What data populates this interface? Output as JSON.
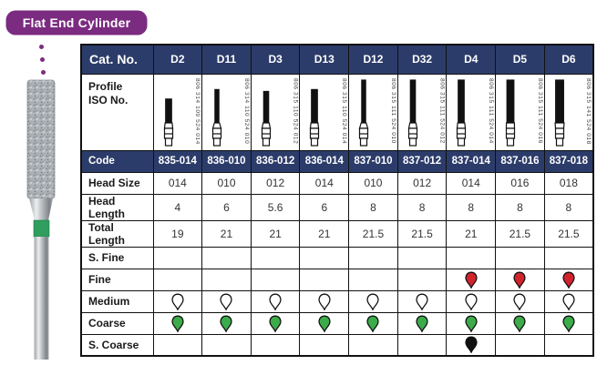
{
  "page": {
    "title": "Flat End Cylinder",
    "accent_purple": "#7b2b80",
    "navy": "#2c3c6a"
  },
  "product_image": {
    "name": "flat-end-cylinder-diamond-bur-photo",
    "band_color": "#2f9e5f"
  },
  "table": {
    "col_headers": [
      "Cat. No.",
      "D2",
      "D11",
      "D3",
      "D13",
      "D12",
      "D32",
      "D4",
      "D5",
      "D6"
    ],
    "profile_label": "Profile\nISO No.",
    "iso_numbers": [
      "806 314 109 524 014",
      "806 314 110 524 010",
      "806 315 110 524 012",
      "806 315 110 524 014",
      "806 315 111 524 010",
      "806 315 111 524 012",
      "806 315 111 524 014",
      "806 315 111 524 016",
      "806 315 141 524 018"
    ],
    "rows": [
      {
        "label": "Code",
        "style": "navy",
        "type": "text",
        "values": [
          "835-014",
          "836-010",
          "836-012",
          "836-014",
          "837-010",
          "837-012",
          "837-014",
          "837-016",
          "837-018"
        ]
      },
      {
        "label": "Head Size",
        "type": "text",
        "values": [
          "014",
          "010",
          "012",
          "014",
          "010",
          "012",
          "014",
          "016",
          "018"
        ]
      },
      {
        "label": "Head Length",
        "type": "text",
        "values": [
          "4",
          "6",
          "5.6",
          "6",
          "8",
          "8",
          "8",
          "8",
          "8"
        ]
      },
      {
        "label": "Total Length",
        "type": "text",
        "values": [
          "19",
          "21",
          "21",
          "21",
          "21.5",
          "21.5",
          "21",
          "21.5",
          "21.5"
        ]
      },
      {
        "label": "S. Fine",
        "type": "grit",
        "values": [
          null,
          null,
          null,
          null,
          null,
          null,
          null,
          null,
          null
        ]
      },
      {
        "label": "Fine",
        "type": "grit",
        "values": [
          null,
          null,
          null,
          null,
          null,
          null,
          "red",
          "red",
          "red"
        ]
      },
      {
        "label": "Medium",
        "type": "grit",
        "values": [
          "white",
          "white",
          "white",
          "white",
          "white",
          "white",
          "white",
          "white",
          "white"
        ]
      },
      {
        "label": "Coarse",
        "type": "grit",
        "values": [
          "green",
          "green",
          "green",
          "green",
          "green",
          "green",
          "green",
          "green",
          "green"
        ]
      },
      {
        "label": "S. Coarse",
        "type": "grit",
        "values": [
          null,
          null,
          null,
          null,
          null,
          null,
          "black",
          null,
          null
        ]
      }
    ],
    "grit_colors": {
      "white": "#ffffff",
      "green": "#3cab4a",
      "red": "#d2232d",
      "black": "#111111"
    }
  }
}
